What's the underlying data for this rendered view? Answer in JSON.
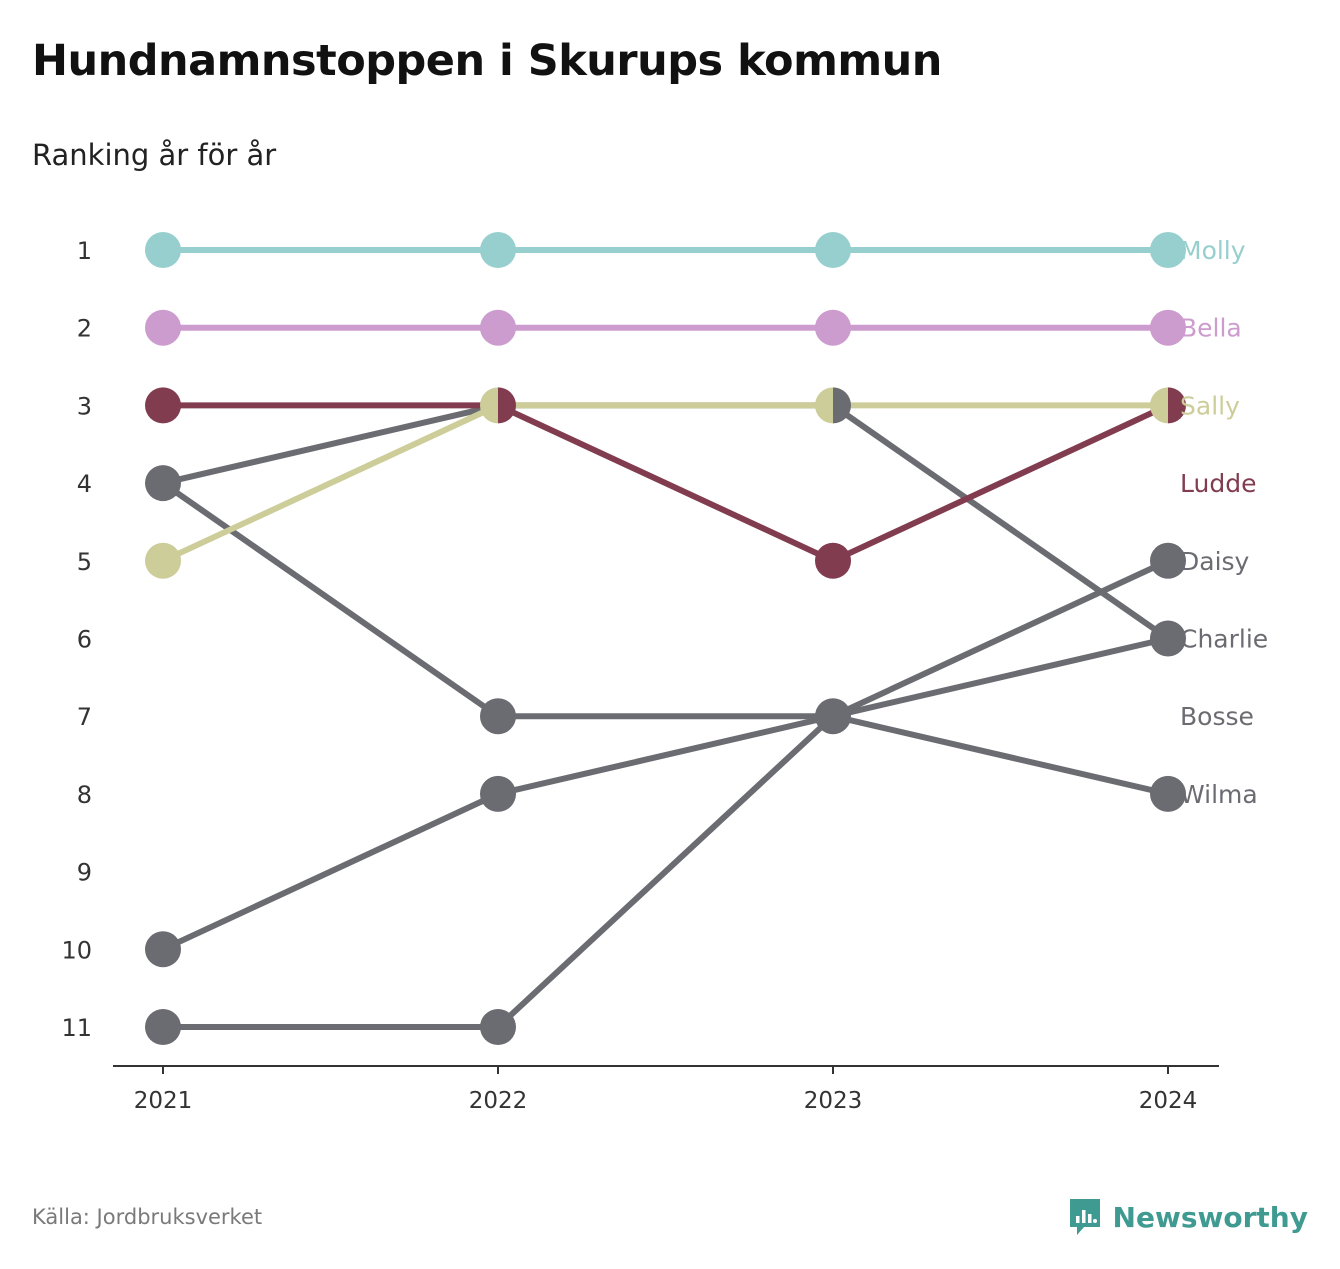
{
  "title": "Hundnamnstoppen i Skurups kommun",
  "subtitle": "Ranking år för år",
  "source": "Källa: Jordbruksverket",
  "brand": {
    "name": "Newsworthy",
    "icon": "newsworthy-logo-icon",
    "color": "#3f9a91"
  },
  "chart_data": {
    "type": "line",
    "variant": "bump",
    "title": "Hundnamnstoppen i Skurups kommun",
    "subtitle": "Ranking år för år",
    "x": [
      "2021",
      "2022",
      "2023",
      "2024"
    ],
    "y_ticks": [
      1,
      2,
      3,
      4,
      5,
      6,
      7,
      8,
      9,
      10,
      11
    ],
    "ylim": [
      1,
      11
    ],
    "y_reversed": true,
    "grid": false,
    "legend": "direct-labels-right",
    "series": [
      {
        "name": "Molly",
        "values": [
          1,
          1,
          1,
          1
        ],
        "color": "#96cfcd"
      },
      {
        "name": "Bella",
        "values": [
          2,
          2,
          2,
          2
        ],
        "color": "#cd9ccf"
      },
      {
        "name": "Sally",
        "values": [
          5,
          3,
          3,
          3
        ],
        "color": "#cdcd9a"
      },
      {
        "name": "Ludde",
        "values": [
          3,
          3,
          5,
          3
        ],
        "color": "#823c50"
      },
      {
        "name": "Daisy",
        "values": [
          11,
          11,
          7,
          5
        ],
        "color": "#6b6b72"
      },
      {
        "name": "Charlie",
        "values": [
          4,
          3,
          3,
          6
        ],
        "color": "#6b6b72"
      },
      {
        "name": "Bosse",
        "values": [
          10,
          8,
          7,
          6
        ],
        "color": "#6b6b72"
      },
      {
        "name": "Wilma",
        "values": [
          4,
          7,
          7,
          8
        ],
        "color": "#6b6b72"
      }
    ]
  }
}
